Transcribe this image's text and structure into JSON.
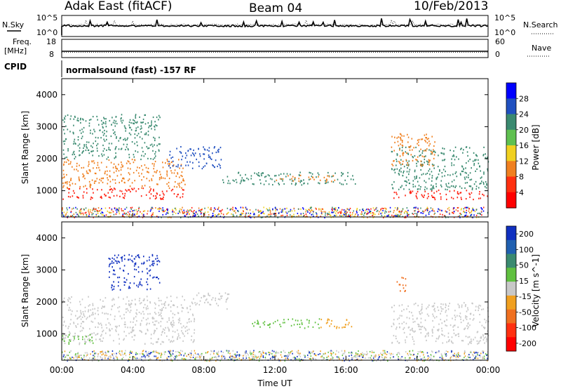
{
  "header": {
    "site": "Adak East (fitACF)",
    "beam": "Beam 04",
    "date": "10/Feb/2013"
  },
  "noise_panel": {
    "left_label": "N.Sky",
    "right_label": "N.Search",
    "left_ticks": [
      "10^5",
      "10^0"
    ],
    "right_ticks": [
      "10^5",
      "10^0"
    ]
  },
  "freq_panel": {
    "left_label_1": "Freq.",
    "left_label_2": "[MHz]",
    "left_ticks": [
      "18",
      "8"
    ],
    "right_label": "Nave",
    "right_ticks": [
      "60",
      "0"
    ]
  },
  "cpid_panel": {
    "label": "CPID",
    "text": "normalsound (fast) -157 RF"
  },
  "chart_data": [
    {
      "type": "heatmap",
      "name": "power",
      "ylabel": "Slant Range [km]",
      "ylim": [
        180,
        4500
      ],
      "yticks": [
        1000,
        2000,
        3000,
        4000
      ],
      "xlim": [
        0,
        24
      ],
      "xticks": [
        "00:00",
        "04:00",
        "08:00",
        "12:00",
        "16:00",
        "20:00",
        "00:00"
      ],
      "colorbar": {
        "label": "Power [dB]",
        "ticks": [
          "4",
          "8",
          "12",
          "16",
          "20",
          "24",
          "28"
        ],
        "colors": [
          "#0000ff",
          "#2050c0",
          "#3a8a70",
          "#5fc050",
          "#f0d020",
          "#f08020",
          "#ff3010",
          "#ff0000"
        ]
      },
      "regions": [
        {
          "t0": 0.0,
          "t1": 7.0,
          "r0": 750,
          "r1": 1100,
          "color": "#ff2010"
        },
        {
          "t0": 0.0,
          "t1": 7.0,
          "r0": 1100,
          "r1": 2000,
          "color": "#f08020"
        },
        {
          "t0": 0.0,
          "t1": 5.5,
          "r0": 2000,
          "r1": 3400,
          "color": "#3a8a70"
        },
        {
          "t0": 6.0,
          "t1": 9.0,
          "r0": 1700,
          "r1": 2400,
          "color": "#2050c0"
        },
        {
          "t0": 9.0,
          "t1": 16.5,
          "r0": 1200,
          "r1": 1600,
          "color": "#3a8a70"
        },
        {
          "t0": 12.0,
          "t1": 15.5,
          "r0": 1300,
          "r1": 1500,
          "color": "#f08020"
        },
        {
          "t0": 18.5,
          "t1": 24.0,
          "r0": 750,
          "r1": 1050,
          "color": "#ff2010"
        },
        {
          "t0": 18.5,
          "t1": 24.0,
          "r0": 1050,
          "r1": 2400,
          "color": "#3a8a70"
        },
        {
          "t0": 18.5,
          "t1": 21.0,
          "r0": 1800,
          "r1": 2800,
          "color": "#f08020"
        }
      ]
    },
    {
      "type": "heatmap",
      "name": "velocity",
      "ylabel": "Slant Range [km]",
      "ylim": [
        180,
        4500
      ],
      "yticks": [
        1000,
        2000,
        3000,
        4000
      ],
      "xlim": [
        0,
        24
      ],
      "xticks": [
        "00:00",
        "04:00",
        "08:00",
        "12:00",
        "16:00",
        "20:00",
        "00:00"
      ],
      "xlabel": "Time UT",
      "colorbar": {
        "label": "Velocity [m s^-1]",
        "ticks": [
          "200",
          "100",
          "50",
          "15",
          "-15",
          "-50",
          "-100",
          "-200"
        ],
        "colors": [
          "#1030c0",
          "#2060b0",
          "#3a8a70",
          "#60c040",
          "#c8c8c8",
          "#f0a020",
          "#f07020",
          "#ff3010",
          "#ff0000"
        ]
      },
      "regions": [
        {
          "t0": 0.0,
          "t1": 7.5,
          "r0": 700,
          "r1": 2200,
          "color": "#c8c8c8"
        },
        {
          "t0": 0.0,
          "t1": 2.0,
          "r0": 700,
          "r1": 1000,
          "color": "#60c040"
        },
        {
          "t0": 2.5,
          "t1": 5.5,
          "r0": 2400,
          "r1": 3500,
          "color": "#1030c0"
        },
        {
          "t0": 7.5,
          "t1": 9.5,
          "r0": 1800,
          "r1": 2300,
          "color": "#c8c8c8"
        },
        {
          "t0": 10.5,
          "t1": 14.5,
          "r0": 1200,
          "r1": 1500,
          "color": "#60c040"
        },
        {
          "t0": 14.5,
          "t1": 16.5,
          "r0": 1200,
          "r1": 1500,
          "color": "#f0a020"
        },
        {
          "t0": 18.8,
          "t1": 19.4,
          "r0": 2300,
          "r1": 2800,
          "color": "#f07020"
        },
        {
          "t0": 18.5,
          "t1": 24.0,
          "r0": 700,
          "r1": 2000,
          "color": "#c8c8c8"
        }
      ]
    }
  ],
  "ground_scatter": {
    "r0": 180,
    "r1": 500
  }
}
